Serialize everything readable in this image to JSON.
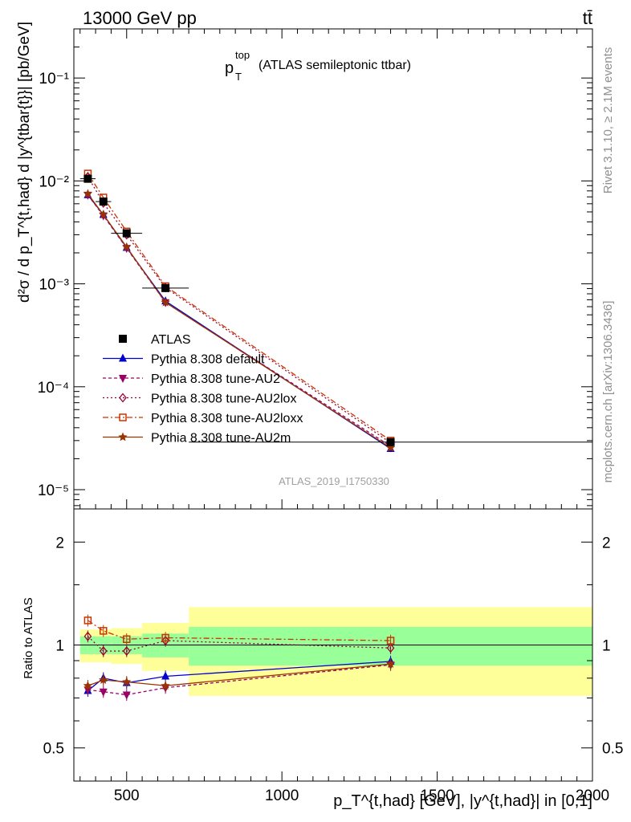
{
  "header": {
    "energy": "13000 GeV pp",
    "process": "tt̄",
    "rivet": "Rivet 3.1.10, ≥ 2.1M events",
    "mcplots": "mcplots.cern.ch [arXiv:1306.3436]",
    "analysis_id": "ATLAS_2019_I1750330"
  },
  "titles": {
    "main_base": "p",
    "main_sup": "top",
    "main_sub": "T",
    "main_rest": "(ATLAS semileptonic ttbar)",
    "ylabel_upper": "d²σ / d p_T^{t,had} d |y^{tbar{t}}| [pb/GeV]",
    "ylabel_ratio": "Ratio to ATLAS",
    "xlabel": "p_T^{t,had} [GeV], |y^{t,had}| in [0,1]"
  },
  "axes": {
    "x_ticks": [
      "500",
      "1000",
      "1500",
      "2000"
    ],
    "y_upper_ticks": [
      "10⁻⁵",
      "10⁻⁴",
      "10⁻³",
      "10⁻²",
      "10⁻¹"
    ],
    "y_ratio_ticks": [
      "0.5",
      "1",
      "2"
    ]
  },
  "legend": [
    {
      "label": "ATLAS",
      "color": "#000000",
      "marker": "square-filled",
      "dash": ""
    },
    {
      "label": "Pythia 8.308 default",
      "color": "#0000cc",
      "marker": "triangle-up",
      "dash": ""
    },
    {
      "label": "Pythia 8.308 tune-AU2",
      "color": "#990066",
      "marker": "triangle-down",
      "dash": "4,3"
    },
    {
      "label": "Pythia 8.308 tune-AU2lox",
      "color": "#990033",
      "marker": "diamond-open",
      "dash": "2,3"
    },
    {
      "label": "Pythia 8.308 tune-AU2loxx",
      "color": "#cc3300",
      "marker": "square-open",
      "dash": "7,3,2,3"
    },
    {
      "label": "Pythia 8.308 tune-AU2m",
      "color": "#993300",
      "marker": "star",
      "dash": ""
    }
  ],
  "chart_data": {
    "type": "line",
    "xlim": [
      330,
      2000
    ],
    "ylim_upper": [
      6.5e-06,
      0.3
    ],
    "ylog_upper": true,
    "ylim_ratio": [
      0.4,
      2.5
    ],
    "ylog_ratio": true,
    "x": [
      375,
      425,
      500,
      625,
      1350
    ],
    "bins": [
      [
        350,
        400
      ],
      [
        400,
        450
      ],
      [
        450,
        550
      ],
      [
        550,
        700
      ],
      [
        700,
        2000
      ]
    ],
    "data": {
      "name": "ATLAS",
      "y": [
        0.0105,
        0.0063,
        0.0031,
        0.00091,
        2.9e-05
      ],
      "ratio_band_stat": [
        0.06,
        0.06,
        0.06,
        0.08,
        0.13
      ],
      "ratio_band_total": [
        0.11,
        0.11,
        0.12,
        0.16,
        0.29
      ]
    },
    "series": [
      {
        "name": "Pythia 8.308 default",
        "y": [
          0.0073,
          0.0047,
          0.00225,
          0.00068,
          2.5e-05
        ],
        "ratio": [
          0.735,
          0.8,
          0.775,
          0.81,
          0.895
        ]
      },
      {
        "name": "Pythia 8.308 tune-AU2",
        "y": [
          0.0073,
          0.0046,
          0.00222,
          0.00066,
          2.65e-05
        ],
        "ratio": [
          0.74,
          0.73,
          0.715,
          0.75,
          0.875
        ]
      },
      {
        "name": "Pythia 8.308 tune-AU2lox",
        "y": [
          0.011,
          0.0061,
          0.003,
          0.00092,
          2.85e-05
        ],
        "ratio": [
          1.06,
          0.96,
          0.96,
          1.03,
          0.98
        ]
      },
      {
        "name": "Pythia 8.308 tune-AU2loxx",
        "y": [
          0.0118,
          0.0069,
          0.00323,
          0.00095,
          3e-05
        ],
        "ratio": [
          1.18,
          1.1,
          1.04,
          1.05,
          1.03
        ]
      },
      {
        "name": "Pythia 8.308 tune-AU2m",
        "y": [
          0.0075,
          0.0047,
          0.00228,
          0.00066,
          2.55e-05
        ],
        "ratio": [
          0.76,
          0.79,
          0.78,
          0.76,
          0.88
        ]
      }
    ]
  }
}
